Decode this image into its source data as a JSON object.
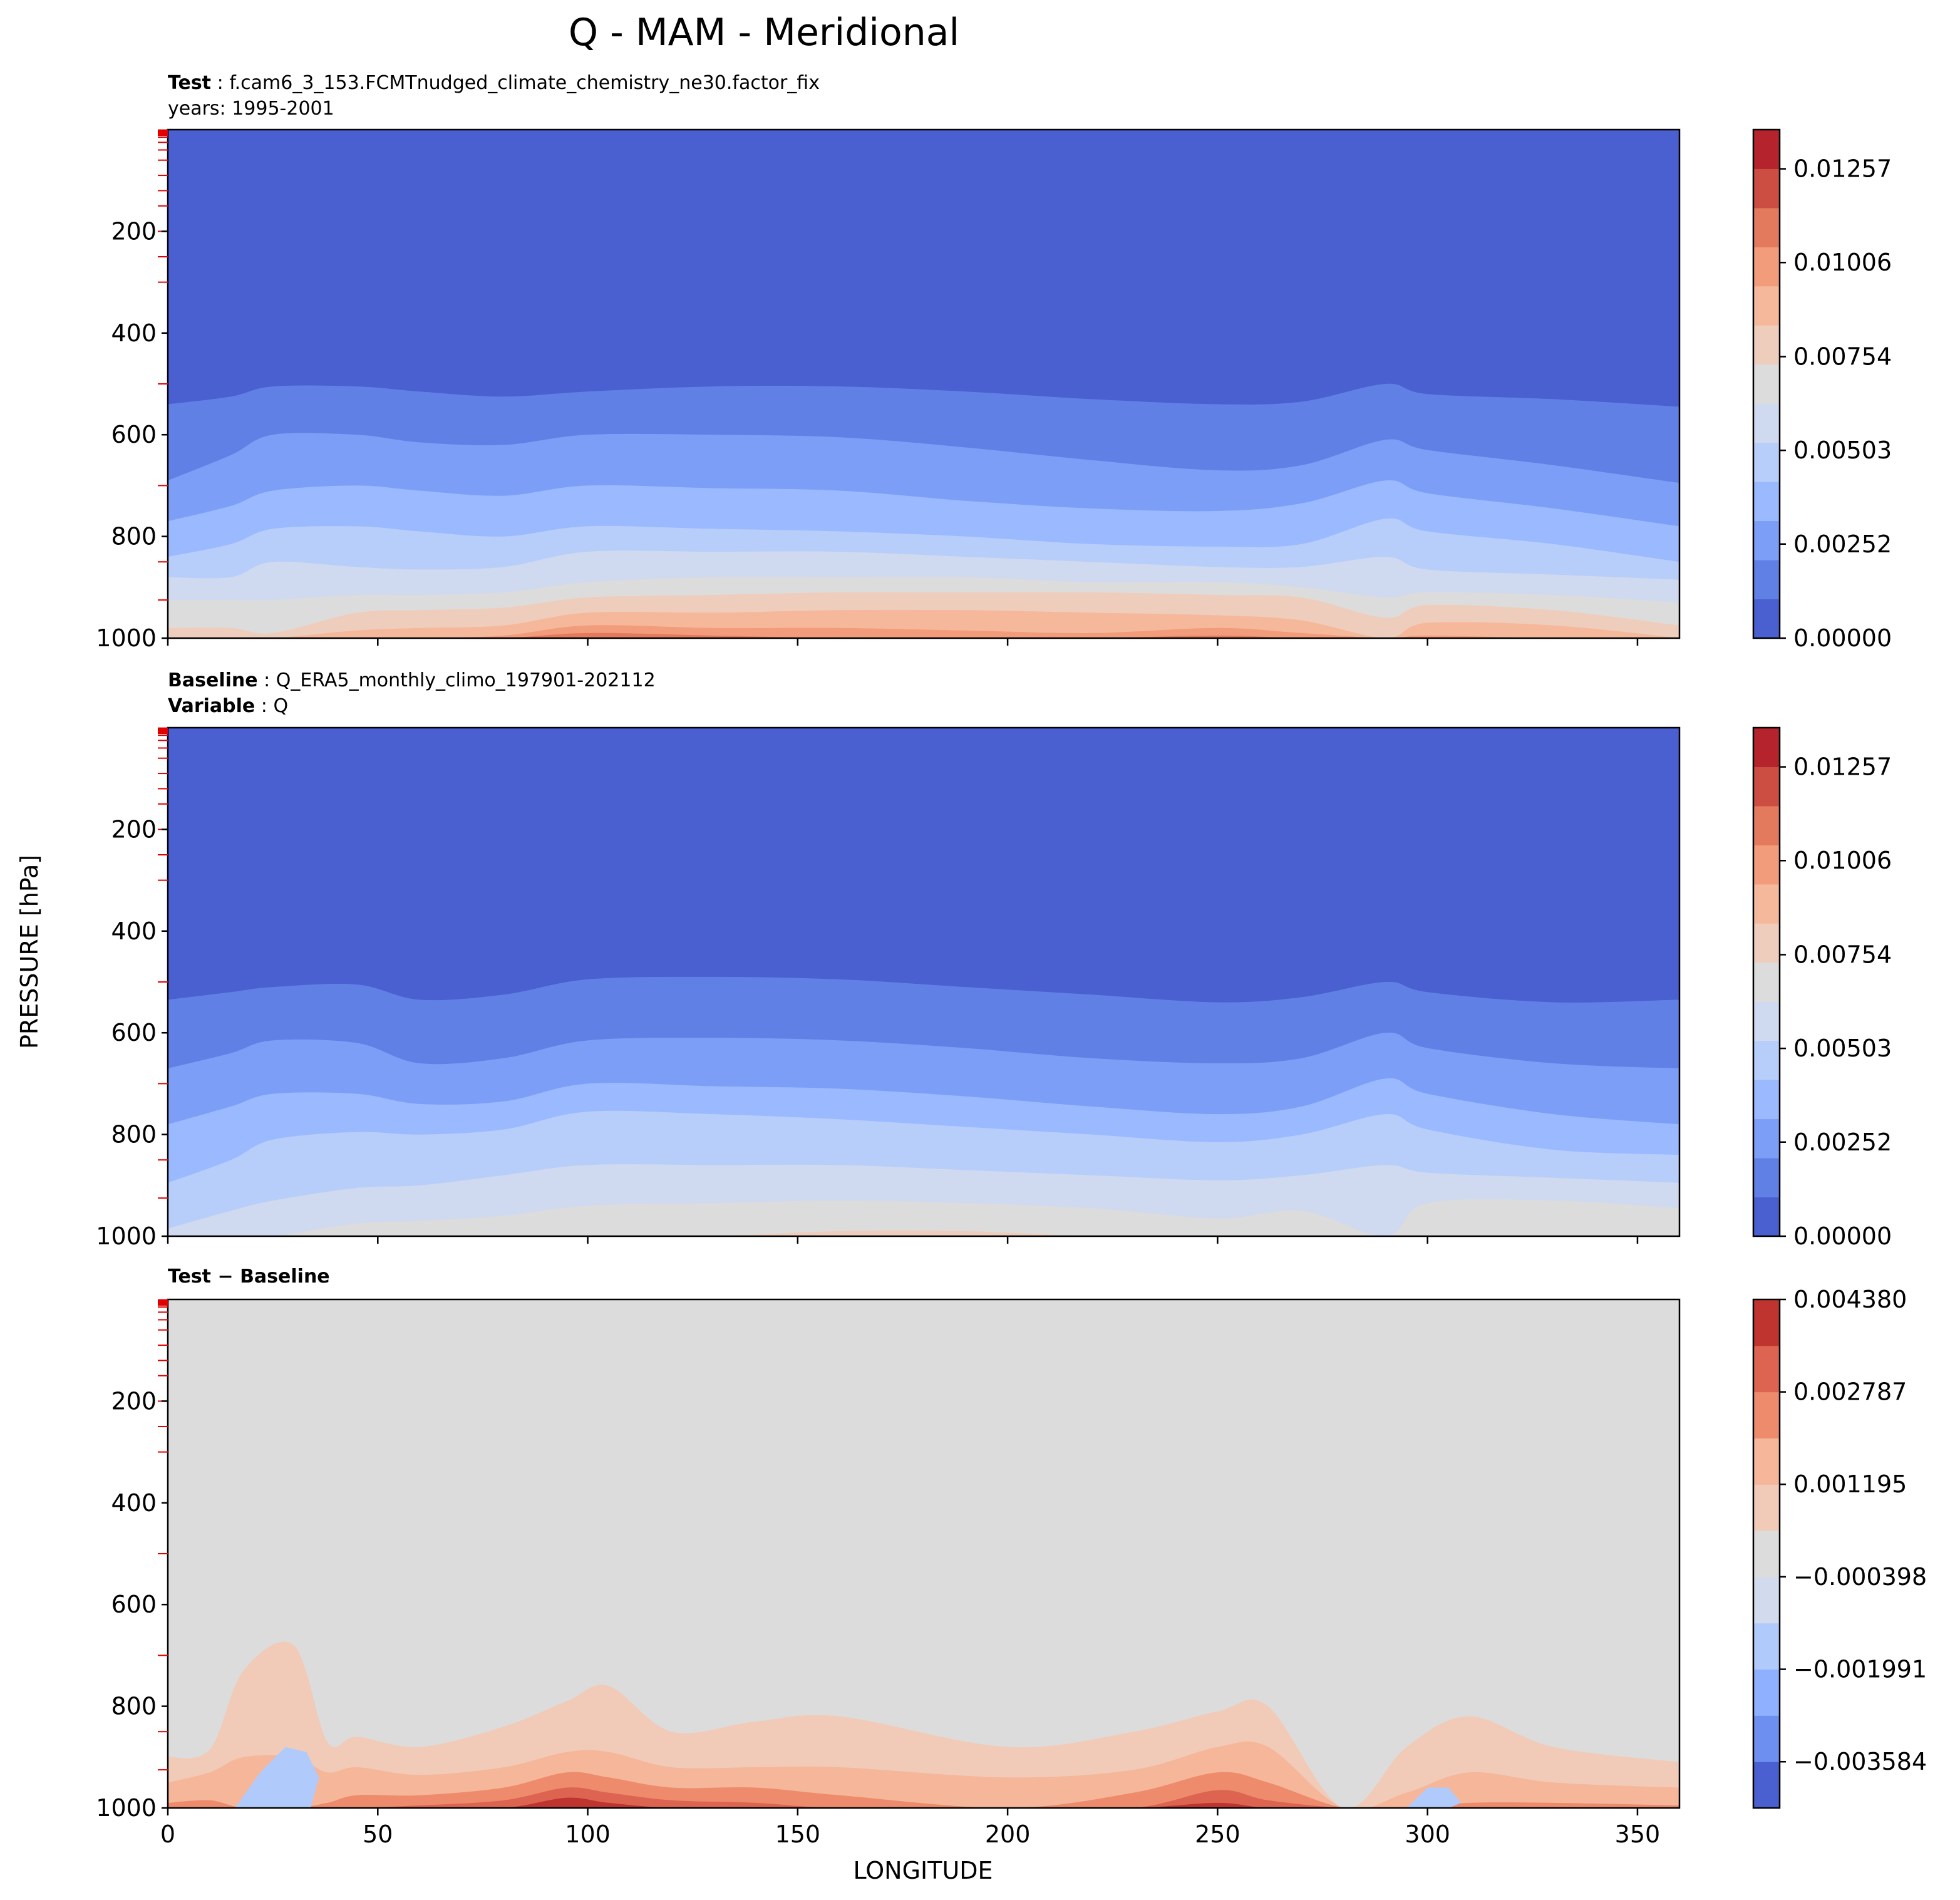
{
  "figure": {
    "title": "Q - MAM - Meridional",
    "xlabel": "LONGITUDE",
    "ylabel": "PRESSURE [hPa]"
  },
  "panels": {
    "test": {
      "line1_label": "Test",
      "line1_sep": " : ",
      "line1_value": "f.cam6_3_153.FCMTnudged_climate_chemistry_ne30.factor_fix",
      "line2_text": "years: 1995-2001"
    },
    "baseline": {
      "line1_label": "Baseline",
      "line1_sep": " : ",
      "line1_value": "Q_ERA5_monthly_climo_197901-202112",
      "line2_label": "Variable",
      "line2_sep": " : ",
      "line2_value": "Q"
    },
    "diff": {
      "title_a": "Test",
      "title_op": " − ",
      "title_b": "Baseline"
    }
  },
  "colors": {
    "test_levels": [
      "#4a5fd0",
      "#6180e6",
      "#7d9ef6",
      "#9ab9ff",
      "#b7cdfa",
      "#cfd9ef",
      "#dddcdc",
      "#efcdbc",
      "#f6b89b",
      "#f29c7b",
      "#e37a5e",
      "#cc4d41",
      "#b5242d"
    ],
    "diff_levels": [
      "#4a5fd0",
      "#6c8ff0",
      "#8eb0fe",
      "#b0cbfb",
      "#d2dbee",
      "#dcdcdc",
      "#f1cbb8",
      "#f5b69a",
      "#ee8b6c",
      "#dd6450",
      "#c0342f"
    ]
  },
  "chart_data": [
    {
      "type": "heatmap",
      "name": "Test",
      "x": [
        0,
        15,
        25,
        45,
        60,
        80,
        100,
        130,
        160,
        190,
        220,
        250,
        270,
        290,
        300,
        330,
        360
      ],
      "xlim": [
        0,
        360
      ],
      "xticks": [
        0,
        50,
        100,
        150,
        200,
        250,
        300,
        350
      ],
      "ylim": [
        1000,
        0
      ],
      "yticks": [
        200,
        400,
        600,
        800,
        1000
      ],
      "y_boundaries_hPa": [
        [
          540,
          525,
          505,
          505,
          515,
          525,
          515,
          505,
          505,
          515,
          530,
          540,
          535,
          500,
          520,
          530,
          545
        ],
        [
          690,
          640,
          600,
          600,
          615,
          620,
          600,
          600,
          605,
          625,
          650,
          670,
          660,
          610,
          630,
          660,
          695
        ],
        [
          770,
          740,
          710,
          700,
          710,
          720,
          700,
          705,
          710,
          730,
          745,
          750,
          735,
          690,
          715,
          745,
          780
        ],
        [
          840,
          815,
          785,
          780,
          790,
          800,
          780,
          785,
          790,
          800,
          815,
          820,
          815,
          765,
          790,
          815,
          850
        ],
        [
          880,
          880,
          850,
          860,
          865,
          860,
          830,
          830,
          830,
          840,
          850,
          860,
          860,
          840,
          865,
          875,
          885
        ],
        [
          925,
          925,
          925,
          915,
          915,
          910,
          890,
          880,
          880,
          880,
          890,
          890,
          900,
          920,
          910,
          915,
          930
        ],
        [
          980,
          980,
          990,
          950,
          945,
          940,
          920,
          915,
          910,
          910,
          910,
          915,
          920,
          960,
          935,
          945,
          975
        ],
        [
          1000,
          1000,
          1000,
          985,
          980,
          975,
          950,
          950,
          945,
          945,
          950,
          955,
          965,
          1000,
          970,
          975,
          1000
        ],
        [
          1000,
          1000,
          1000,
          1000,
          1000,
          995,
          975,
          980,
          980,
          985,
          990,
          980,
          990,
          1000,
          995,
          1000,
          1000
        ],
        [
          1000,
          1000,
          1000,
          1000,
          1000,
          1000,
          990,
          995,
          1000,
          1000,
          1000,
          995,
          1000,
          1000,
          1000,
          1000,
          1000
        ]
      ],
      "colorbar": {
        "levels": [
          0.0,
          0.00105,
          0.0021,
          0.00314,
          0.00419,
          0.00524,
          0.00629,
          0.00734,
          0.00838,
          0.00943,
          0.01048,
          0.01153,
          0.01257,
          0.01362
        ],
        "tick_values": [
          0.0,
          0.00252,
          0.00503,
          0.00754,
          0.01006,
          0.01257
        ],
        "tick_labels": [
          "0.00000",
          "0.00252",
          "0.00503",
          "0.00754",
          "0.01006",
          "0.01257"
        ]
      }
    },
    {
      "type": "heatmap",
      "name": "Baseline",
      "x": [
        0,
        15,
        25,
        45,
        60,
        80,
        100,
        130,
        160,
        190,
        220,
        250,
        270,
        290,
        300,
        330,
        360
      ],
      "xlim": [
        0,
        360
      ],
      "xticks": [
        0,
        50,
        100,
        150,
        200,
        250,
        300,
        350
      ],
      "ylim": [
        1000,
        0
      ],
      "yticks": [
        200,
        400,
        600,
        800,
        1000
      ],
      "y_boundaries_hPa": [
        [
          535,
          520,
          510,
          505,
          535,
          525,
          495,
          490,
          495,
          510,
          525,
          540,
          530,
          500,
          520,
          540,
          535
        ],
        [
          670,
          640,
          615,
          620,
          660,
          650,
          615,
          610,
          615,
          630,
          650,
          660,
          650,
          600,
          630,
          660,
          670
        ],
        [
          780,
          745,
          720,
          720,
          740,
          735,
          700,
          705,
          710,
          725,
          745,
          760,
          745,
          690,
          720,
          760,
          780
        ],
        [
          895,
          850,
          810,
          795,
          800,
          790,
          755,
          760,
          770,
          785,
          800,
          815,
          800,
          760,
          790,
          830,
          840
        ],
        [
          985,
          950,
          930,
          905,
          900,
          880,
          860,
          860,
          860,
          870,
          880,
          890,
          880,
          860,
          875,
          885,
          895
        ],
        [
          1000,
          1000,
          1000,
          975,
          970,
          960,
          940,
          935,
          930,
          935,
          945,
          965,
          950,
          1000,
          935,
          930,
          945
        ],
        [
          1000,
          1000,
          1000,
          1000,
          1000,
          1000,
          1000,
          1000,
          990,
          990,
          1000,
          1000,
          1000,
          1000,
          1000,
          1000,
          1000
        ]
      ],
      "colorbar": {
        "levels": [
          0.0,
          0.00105,
          0.0021,
          0.00314,
          0.00419,
          0.00524,
          0.00629,
          0.00734,
          0.00838,
          0.00943,
          0.01048,
          0.01153,
          0.01257,
          0.01362
        ],
        "tick_values": [
          0.0,
          0.00252,
          0.00503,
          0.00754,
          0.01006,
          0.01257
        ],
        "tick_labels": [
          "0.00000",
          "0.00252",
          "0.00503",
          "0.00754",
          "0.01006",
          "0.01257"
        ]
      }
    },
    {
      "type": "heatmap",
      "name": "Test − Baseline",
      "x": [
        0,
        10,
        18,
        30,
        38,
        45,
        60,
        80,
        95,
        105,
        120,
        140,
        160,
        200,
        230,
        250,
        262,
        280,
        295,
        310,
        330,
        360
      ],
      "xlim": [
        0,
        360
      ],
      "xticks": [
        0,
        50,
        100,
        150,
        200,
        250,
        300,
        350
      ],
      "ylim": [
        1000,
        0
      ],
      "yticks": [
        200,
        400,
        600,
        800,
        1000
      ],
      "background_level_index": 5,
      "anomaly_bands_hPa": [
        [
          900,
          885,
          730,
          680,
          870,
          860,
          880,
          840,
          790,
          760,
          850,
          830,
          820,
          880,
          850,
          810,
          800,
          1000,
          880,
          820,
          880,
          910
        ],
        [
          950,
          930,
          900,
          900,
          930,
          920,
          935,
          920,
          890,
          890,
          920,
          920,
          920,
          940,
          925,
          880,
          880,
          1000,
          970,
          930,
          950,
          960
        ],
        [
          990,
          985,
          1000,
          1000,
          990,
          975,
          975,
          960,
          930,
          940,
          960,
          960,
          975,
          1000,
          970,
          930,
          950,
          1000,
          1000,
          990,
          990,
          995
        ],
        [
          1000,
          1000,
          1000,
          1000,
          1000,
          1000,
          995,
          985,
          960,
          970,
          985,
          990,
          1000,
          1000,
          1000,
          965,
          985,
          1000,
          1000,
          1000,
          1000,
          1000
        ],
        [
          1000,
          1000,
          1000,
          1000,
          1000,
          1000,
          1000,
          1000,
          980,
          990,
          1000,
          1000,
          1000,
          1000,
          1000,
          990,
          1000,
          1000,
          1000,
          1000,
          1000,
          1000
        ]
      ],
      "negative_patches": [
        {
          "x": [
            16,
            22,
            28,
            33,
            36,
            34,
            28,
            20,
            16
          ],
          "y": [
            1000,
            930,
            880,
            890,
            940,
            1000,
            1000,
            1000,
            1000
          ]
        },
        {
          "x": [
            295,
            300,
            305,
            308,
            305,
            298,
            295
          ],
          "y": [
            1000,
            960,
            960,
            990,
            1000,
            1000,
            1000
          ]
        }
      ],
      "colorbar": {
        "levels": [
          -0.00438,
          -0.00358,
          -0.00279,
          -0.00199,
          -0.0012,
          -0.0004,
          0.0004,
          0.0012,
          0.00199,
          0.00279,
          0.00358,
          0.00438
        ],
        "tick_values": [
          -0.003584,
          -0.001991,
          -0.000398,
          0.001195,
          0.002787,
          0.00438
        ],
        "tick_labels": [
          "−0.003584",
          "−0.001991",
          "−0.000398",
          "0.001195",
          "0.002787",
          "0.004380"
        ]
      }
    }
  ]
}
